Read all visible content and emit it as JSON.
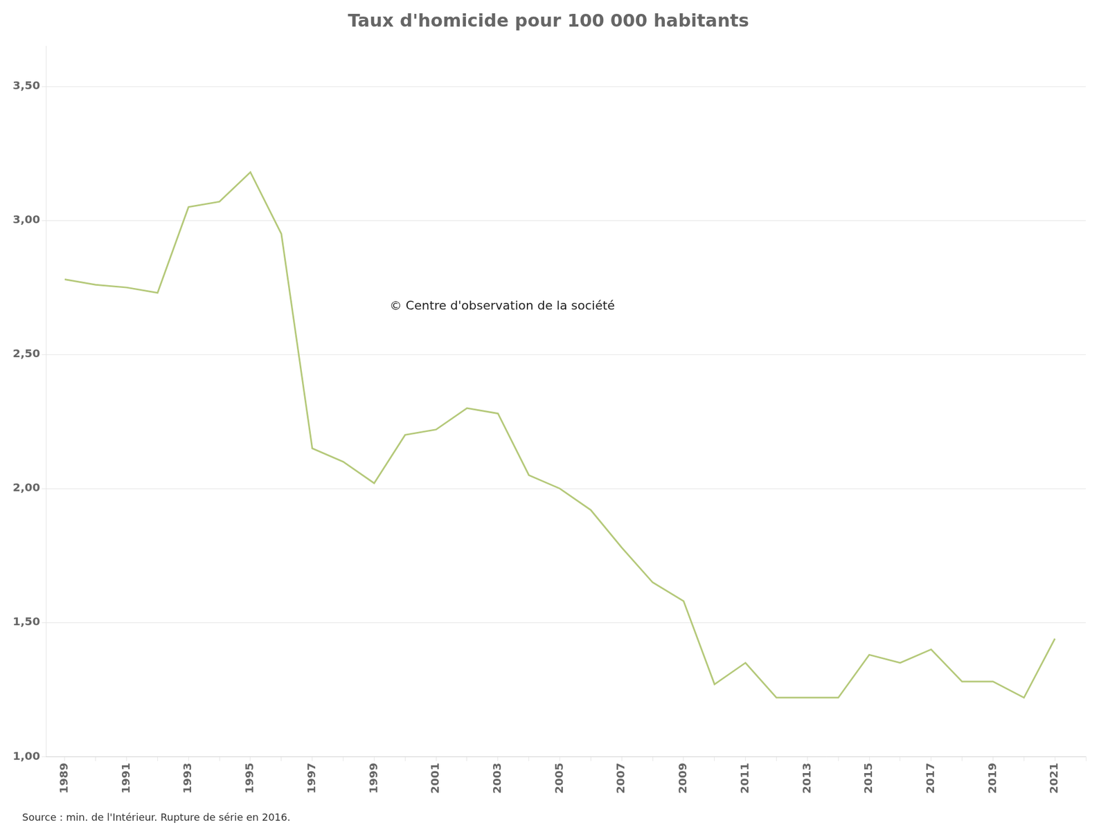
{
  "chart_data": {
    "type": "line",
    "title": "Taux d'homicide pour 100 000 habitants",
    "annotations": [
      {
        "text": "© Centre d'observation de la société",
        "x": 1999.5,
        "y": 2.68
      }
    ],
    "source": "Source : min. de l'Intérieur. Rupture de série en 2016.",
    "color": "#b5c97a",
    "x": [
      1989,
      1990,
      1991,
      1992,
      1993,
      1994,
      1995,
      1996,
      1997,
      1998,
      1999,
      2000,
      2001,
      2002,
      2003,
      2004,
      2005,
      2006,
      2007,
      2008,
      2009,
      2010,
      2011,
      2012,
      2013,
      2014,
      2015,
      2016,
      2017,
      2018,
      2019,
      2020,
      2021
    ],
    "values": [
      2.78,
      2.76,
      2.75,
      2.73,
      3.05,
      3.07,
      3.18,
      2.95,
      2.15,
      2.1,
      2.02,
      2.2,
      2.22,
      2.3,
      2.28,
      2.05,
      2.0,
      1.92,
      1.78,
      1.65,
      1.58,
      1.27,
      1.35,
      1.22,
      1.22,
      1.22,
      1.38,
      1.35,
      1.4,
      1.28,
      1.28,
      1.22,
      1.44
    ],
    "xlim": [
      1988.4,
      2022.0
    ],
    "xticks": [
      1989,
      {
        "value": 1990,
        "label": null
      },
      1991,
      {
        "value": 1992,
        "label": null
      },
      1993,
      {
        "value": 1994,
        "label": null
      },
      1995,
      {
        "value": 1996,
        "label": null
      },
      1997,
      {
        "value": 1998,
        "label": null
      },
      1999,
      {
        "value": 2000,
        "label": null
      },
      2001,
      {
        "value": 2002,
        "label": null
      },
      2003,
      {
        "value": 2004,
        "label": null
      },
      2005,
      {
        "value": 2006,
        "label": null
      },
      2007,
      {
        "value": 2008,
        "label": null
      },
      2009,
      {
        "value": 2010,
        "label": null
      },
      2011,
      {
        "value": 2012,
        "label": null
      },
      2013,
      {
        "value": 2014,
        "label": null
      },
      2015,
      {
        "value": 2016,
        "label": null
      },
      2017,
      {
        "value": 2018,
        "label": null
      },
      2019,
      {
        "value": 2020,
        "label": null
      },
      2021,
      {
        "value": 2022,
        "label": null
      }
    ],
    "ylim": [
      1.0,
      3.65
    ],
    "yticks": [
      {
        "value": 1.0,
        "label": "1,00"
      },
      {
        "value": 1.5,
        "label": "1,50"
      },
      {
        "value": 2.0,
        "label": "2,00"
      },
      {
        "value": 2.5,
        "label": "2,50"
      },
      {
        "value": 3.0,
        "label": "3,00"
      },
      {
        "value": 3.5,
        "label": "3,50"
      }
    ],
    "grid": "y"
  }
}
